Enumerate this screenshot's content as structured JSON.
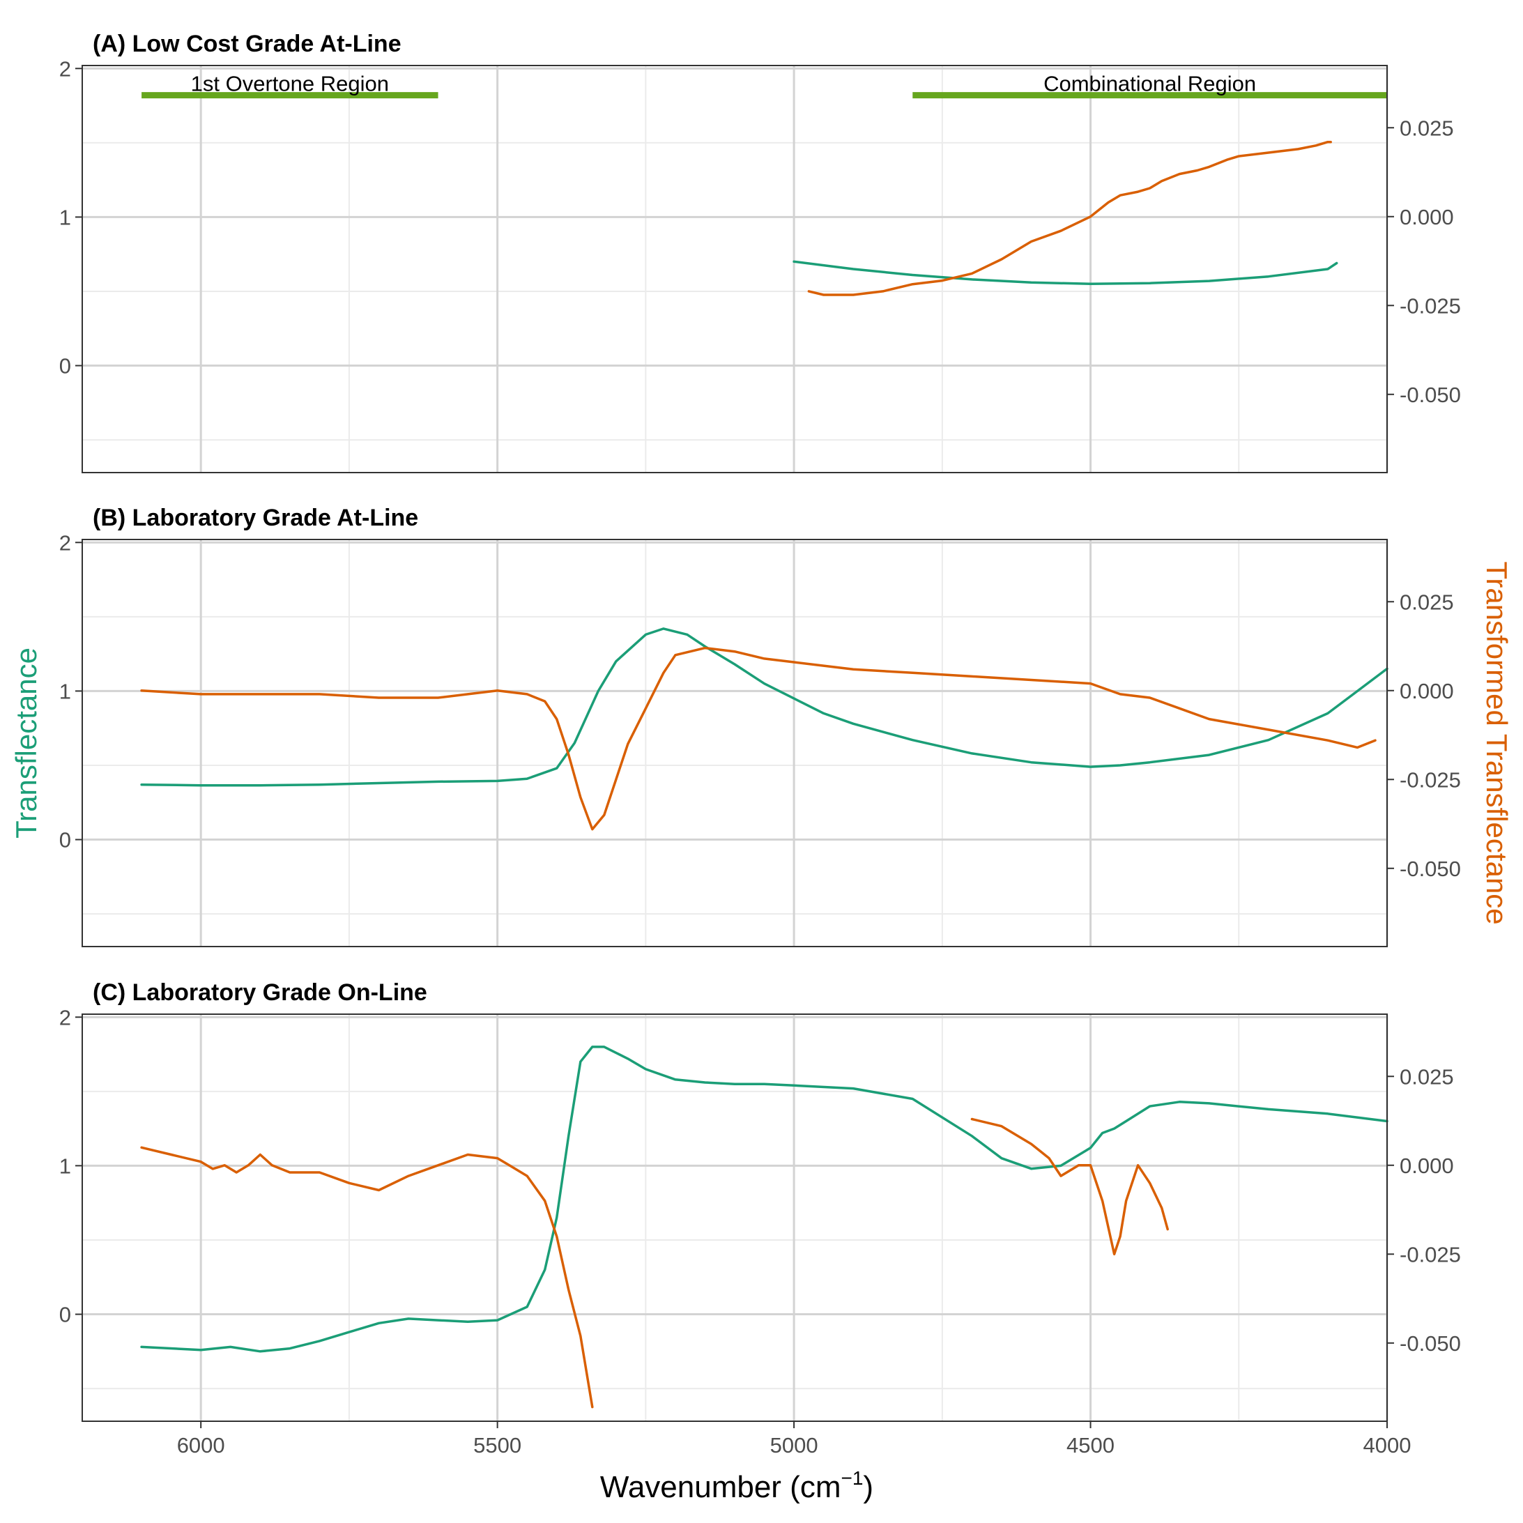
{
  "colors": {
    "transflectance": "#1b9e77",
    "transformed": "#d95f02",
    "region_bar": "#66a61e",
    "grid_major": "#d3d3d3",
    "grid_minor": "#ebebeb",
    "frame": "#333333"
  },
  "chart_data": {
    "type": "line",
    "xlabel_main": "Wavenumber (cm",
    "xlabel_sup": "−1",
    "xlabel_close": ")",
    "ylabel_left": "Transflectance",
    "ylabel_right": "Transformed Transflectance",
    "x_reversed": true,
    "xlim": [
      6200,
      4000
    ],
    "x_ticks": [
      "6000",
      "5500",
      "5000",
      "4500",
      "4000"
    ],
    "x_tick_values": [
      6000,
      5500,
      5000,
      4500,
      4000
    ],
    "ylim_left": [
      -0.72,
      2.02
    ],
    "y_ticks_left": [
      "0",
      "1",
      "2"
    ],
    "y_tick_values_left": [
      0,
      1,
      2
    ],
    "ylim_right": [
      -0.072,
      0.0425
    ],
    "y_ticks_right": [
      "0.025",
      "0.000",
      "-0.025",
      "-0.050"
    ],
    "y_tick_values_right": [
      0.025,
      0,
      -0.025,
      -0.05
    ],
    "grid": true,
    "panels": [
      {
        "title": "(A) Low Cost Grade At-Line",
        "regions": [
          {
            "label": "1st Overtone Region",
            "x_from": 6100,
            "x_to": 5600,
            "y": 1.82
          },
          {
            "label": "Combinational Region",
            "x_from": 4800,
            "x_to": 4000,
            "y": 1.82
          }
        ],
        "series": [
          {
            "axis": "left",
            "x": [
              5000,
              4900,
              4800,
              4700,
              4600,
              4500,
              4400,
              4300,
              4200,
              4100,
              4085
            ],
            "y": [
              0.7,
              0.65,
              0.61,
              0.58,
              0.56,
              0.55,
              0.555,
              0.57,
              0.6,
              0.65,
              0.69
            ]
          },
          {
            "axis": "right",
            "x": [
              4975,
              4950,
              4900,
              4850,
              4800,
              4750,
              4700,
              4650,
              4600,
              4550,
              4500,
              4470,
              4450,
              4420,
              4400,
              4380,
              4350,
              4320,
              4300,
              4270,
              4250,
              4200,
              4150,
              4120,
              4100,
              4095
            ],
            "y": [
              -0.021,
              -0.022,
              -0.022,
              -0.021,
              -0.019,
              -0.018,
              -0.016,
              -0.012,
              -0.007,
              -0.004,
              0.0,
              0.004,
              0.006,
              0.007,
              0.008,
              0.01,
              0.012,
              0.013,
              0.014,
              0.016,
              0.017,
              0.018,
              0.019,
              0.02,
              0.021,
              0.021
            ]
          }
        ]
      },
      {
        "title": "(B) Laboratory Grade At-Line",
        "regions": [],
        "series": [
          {
            "axis": "left",
            "x": [
              6100,
              6000,
              5900,
              5800,
              5700,
              5600,
              5500,
              5450,
              5400,
              5370,
              5330,
              5300,
              5250,
              5220,
              5180,
              5150,
              5100,
              5050,
              5000,
              4950,
              4900,
              4800,
              4700,
              4600,
              4500,
              4450,
              4400,
              4300,
              4200,
              4100,
              4050,
              4000
            ],
            "y": [
              0.37,
              0.365,
              0.365,
              0.37,
              0.38,
              0.39,
              0.395,
              0.41,
              0.48,
              0.65,
              1.0,
              1.2,
              1.38,
              1.42,
              1.38,
              1.3,
              1.18,
              1.05,
              0.95,
              0.85,
              0.78,
              0.67,
              0.58,
              0.52,
              0.49,
              0.5,
              0.52,
              0.57,
              0.67,
              0.85,
              1.0,
              1.15
            ]
          },
          {
            "axis": "right",
            "x": [
              6100,
              6000,
              5900,
              5800,
              5700,
              5600,
              5500,
              5450,
              5420,
              5400,
              5380,
              5360,
              5340,
              5320,
              5300,
              5280,
              5250,
              5220,
              5200,
              5150,
              5100,
              5050,
              5000,
              4900,
              4800,
              4700,
              4600,
              4500,
              4450,
              4400,
              4350,
              4300,
              4200,
              4100,
              4050,
              4020
            ],
            "y": [
              0.0,
              -0.001,
              -0.001,
              -0.001,
              -0.002,
              -0.002,
              0.0,
              -0.001,
              -0.003,
              -0.008,
              -0.018,
              -0.03,
              -0.039,
              -0.035,
              -0.025,
              -0.015,
              -0.005,
              0.005,
              0.01,
              0.012,
              0.011,
              0.009,
              0.008,
              0.006,
              0.005,
              0.004,
              0.003,
              0.002,
              -0.001,
              -0.002,
              -0.005,
              -0.008,
              -0.011,
              -0.014,
              -0.016,
              -0.014
            ]
          }
        ]
      },
      {
        "title": "(C) Laboratory Grade On-Line",
        "regions": [],
        "series": [
          {
            "axis": "left",
            "x": [
              6100,
              6000,
              5950,
              5900,
              5850,
              5800,
              5750,
              5700,
              5650,
              5600,
              5550,
              5500,
              5450,
              5420,
              5400,
              5380,
              5360,
              5340,
              5320,
              5300,
              5280,
              5250,
              5200,
              5150,
              5100,
              5050,
              5000,
              4900,
              4800,
              4700,
              4650,
              4600,
              4550,
              4500,
              4480,
              4460,
              4440,
              4400,
              4350,
              4300,
              4200,
              4100,
              4000
            ],
            "y": [
              -0.22,
              -0.24,
              -0.22,
              -0.25,
              -0.23,
              -0.18,
              -0.12,
              -0.06,
              -0.03,
              -0.04,
              -0.05,
              -0.04,
              0.05,
              0.3,
              0.65,
              1.2,
              1.7,
              1.8,
              1.8,
              1.76,
              1.72,
              1.65,
              1.58,
              1.56,
              1.55,
              1.55,
              1.54,
              1.52,
              1.45,
              1.2,
              1.05,
              0.98,
              1.0,
              1.12,
              1.22,
              1.25,
              1.3,
              1.4,
              1.43,
              1.42,
              1.38,
              1.35,
              1.3
            ]
          },
          {
            "axis": "right",
            "x": [
              6100,
              6050,
              6000,
              5980,
              5960,
              5940,
              5920,
              5900,
              5880,
              5850,
              5800,
              5750,
              5700,
              5650,
              5600,
              5550,
              5500,
              5480,
              5450,
              5420,
              5400,
              5380,
              5360,
              5340
            ],
            "y": [
              0.005,
              0.003,
              0.001,
              -0.001,
              0.0,
              -0.002,
              0.0,
              0.003,
              0.0,
              -0.002,
              -0.002,
              -0.005,
              -0.007,
              -0.003,
              0.0,
              0.003,
              0.002,
              0.0,
              -0.003,
              -0.01,
              -0.02,
              -0.035,
              -0.048,
              -0.068
            ]
          },
          {
            "axis": "right",
            "x": [
              4700,
              4650,
              4600,
              4570,
              4550,
              4520,
              4500,
              4480,
              4460,
              4450,
              4440,
              4420,
              4400,
              4380,
              4370
            ],
            "y": [
              0.013,
              0.011,
              0.006,
              0.002,
              -0.003,
              0.0,
              0.0,
              -0.01,
              -0.025,
              -0.02,
              -0.01,
              0.0,
              -0.005,
              -0.012,
              -0.018
            ]
          }
        ]
      }
    ]
  }
}
